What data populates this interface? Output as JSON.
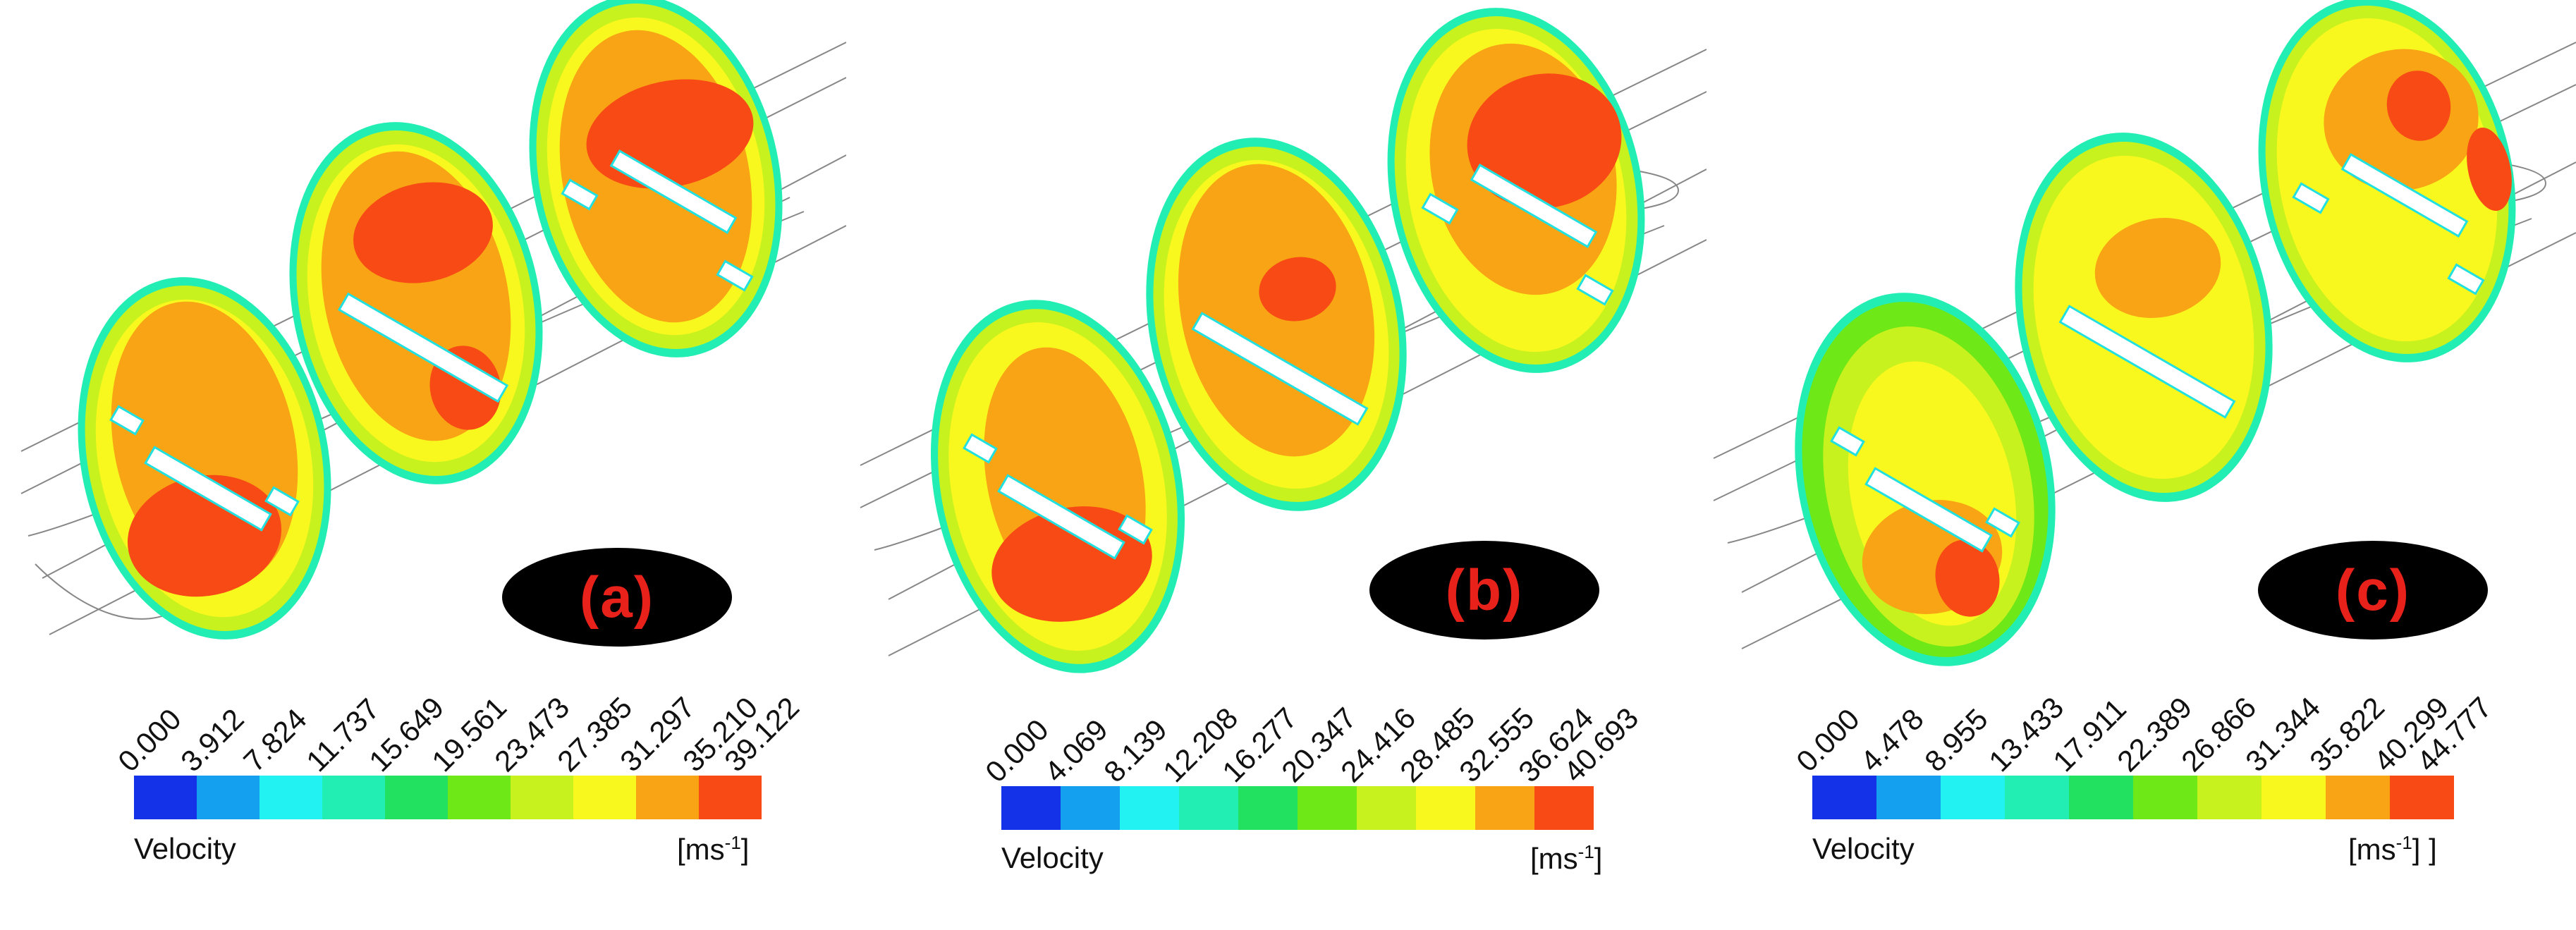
{
  "colors": {
    "scale": [
      "#1433e8",
      "#14a0ee",
      "#22f2f2",
      "#22eeb4",
      "#22e060",
      "#6ee816",
      "#c8f21e",
      "#f8f81e",
      "#f8a414",
      "#f84a14"
    ],
    "label_oval": "#000000",
    "label_text": "#e8221b"
  },
  "panels": [
    {
      "label": "(a)",
      "legend": {
        "title": "Velocity",
        "unit_base": "[ms",
        "unit_exp": "-1",
        "unit_close": "]",
        "ticks": [
          "0.000",
          "3.912",
          "7.824",
          "11.737",
          "15.649",
          "19.561",
          "23.473",
          "27.385",
          "31.297",
          "35.210",
          "39.122"
        ]
      }
    },
    {
      "label": "(b)",
      "legend": {
        "title": "Velocity",
        "unit_base": "[ms",
        "unit_exp": "-1",
        "unit_close": "]",
        "ticks": [
          "0.000",
          "4.069",
          "8.139",
          "12.208",
          "16.277",
          "20.347",
          "24.416",
          "28.485",
          "32.555",
          "36.624",
          "40.693"
        ]
      }
    },
    {
      "label": "(c)",
      "legend": {
        "title": "Velocity",
        "unit_base": "[ms",
        "unit_exp": "-1",
        "unit_close": "] ]",
        "ticks": [
          "0.000",
          "4.478",
          "8.955",
          "13.433",
          "17.911",
          "22.389",
          "26.866",
          "31.344",
          "35.822",
          "40.299",
          "44.777"
        ]
      }
    }
  ]
}
